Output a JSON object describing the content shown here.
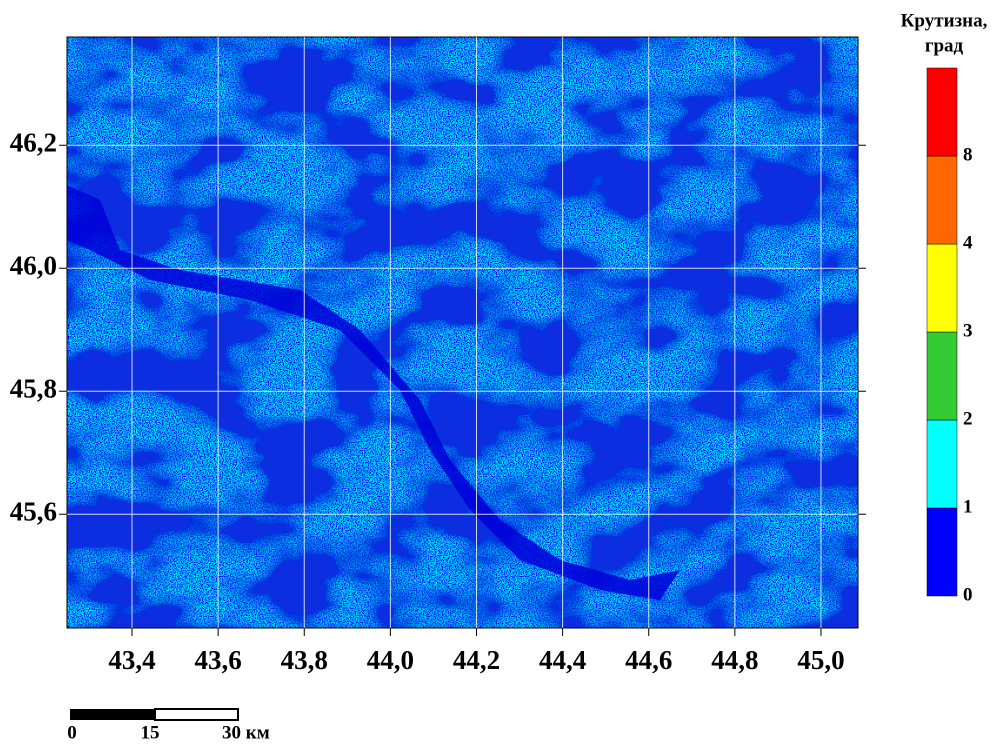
{
  "map": {
    "xlim": [
      43.249,
      45.086
    ],
    "ylim": [
      45.415,
      46.376
    ],
    "xticks": [
      {
        "value": 43.4,
        "label": "43,4"
      },
      {
        "value": 43.6,
        "label": "43,6"
      },
      {
        "value": 43.8,
        "label": "43,8"
      },
      {
        "value": 44.0,
        "label": "44,0"
      },
      {
        "value": 44.2,
        "label": "44,2"
      },
      {
        "value": 44.4,
        "label": "44,4"
      },
      {
        "value": 44.6,
        "label": "44,6"
      },
      {
        "value": 44.8,
        "label": "44,8"
      },
      {
        "value": 45.0,
        "label": "45,0"
      }
    ],
    "yticks": [
      {
        "value": 45.6,
        "label": "45,6"
      },
      {
        "value": 45.8,
        "label": "45,8"
      },
      {
        "value": 46.0,
        "label": "46,0"
      },
      {
        "value": 46.2,
        "label": "46,2"
      }
    ],
    "grid": true
  },
  "legend": {
    "title": [
      "Крутизна,",
      "град"
    ],
    "labels": [
      0,
      1,
      2,
      3,
      4,
      8
    ],
    "colors": [
      "#0000ff",
      "#00ffff",
      "#33cc33",
      "#ffff00",
      "#ff6600",
      "#ff0000"
    ]
  },
  "scale_bar": {
    "labels": [
      "0",
      "15",
      "30 км"
    ]
  }
}
